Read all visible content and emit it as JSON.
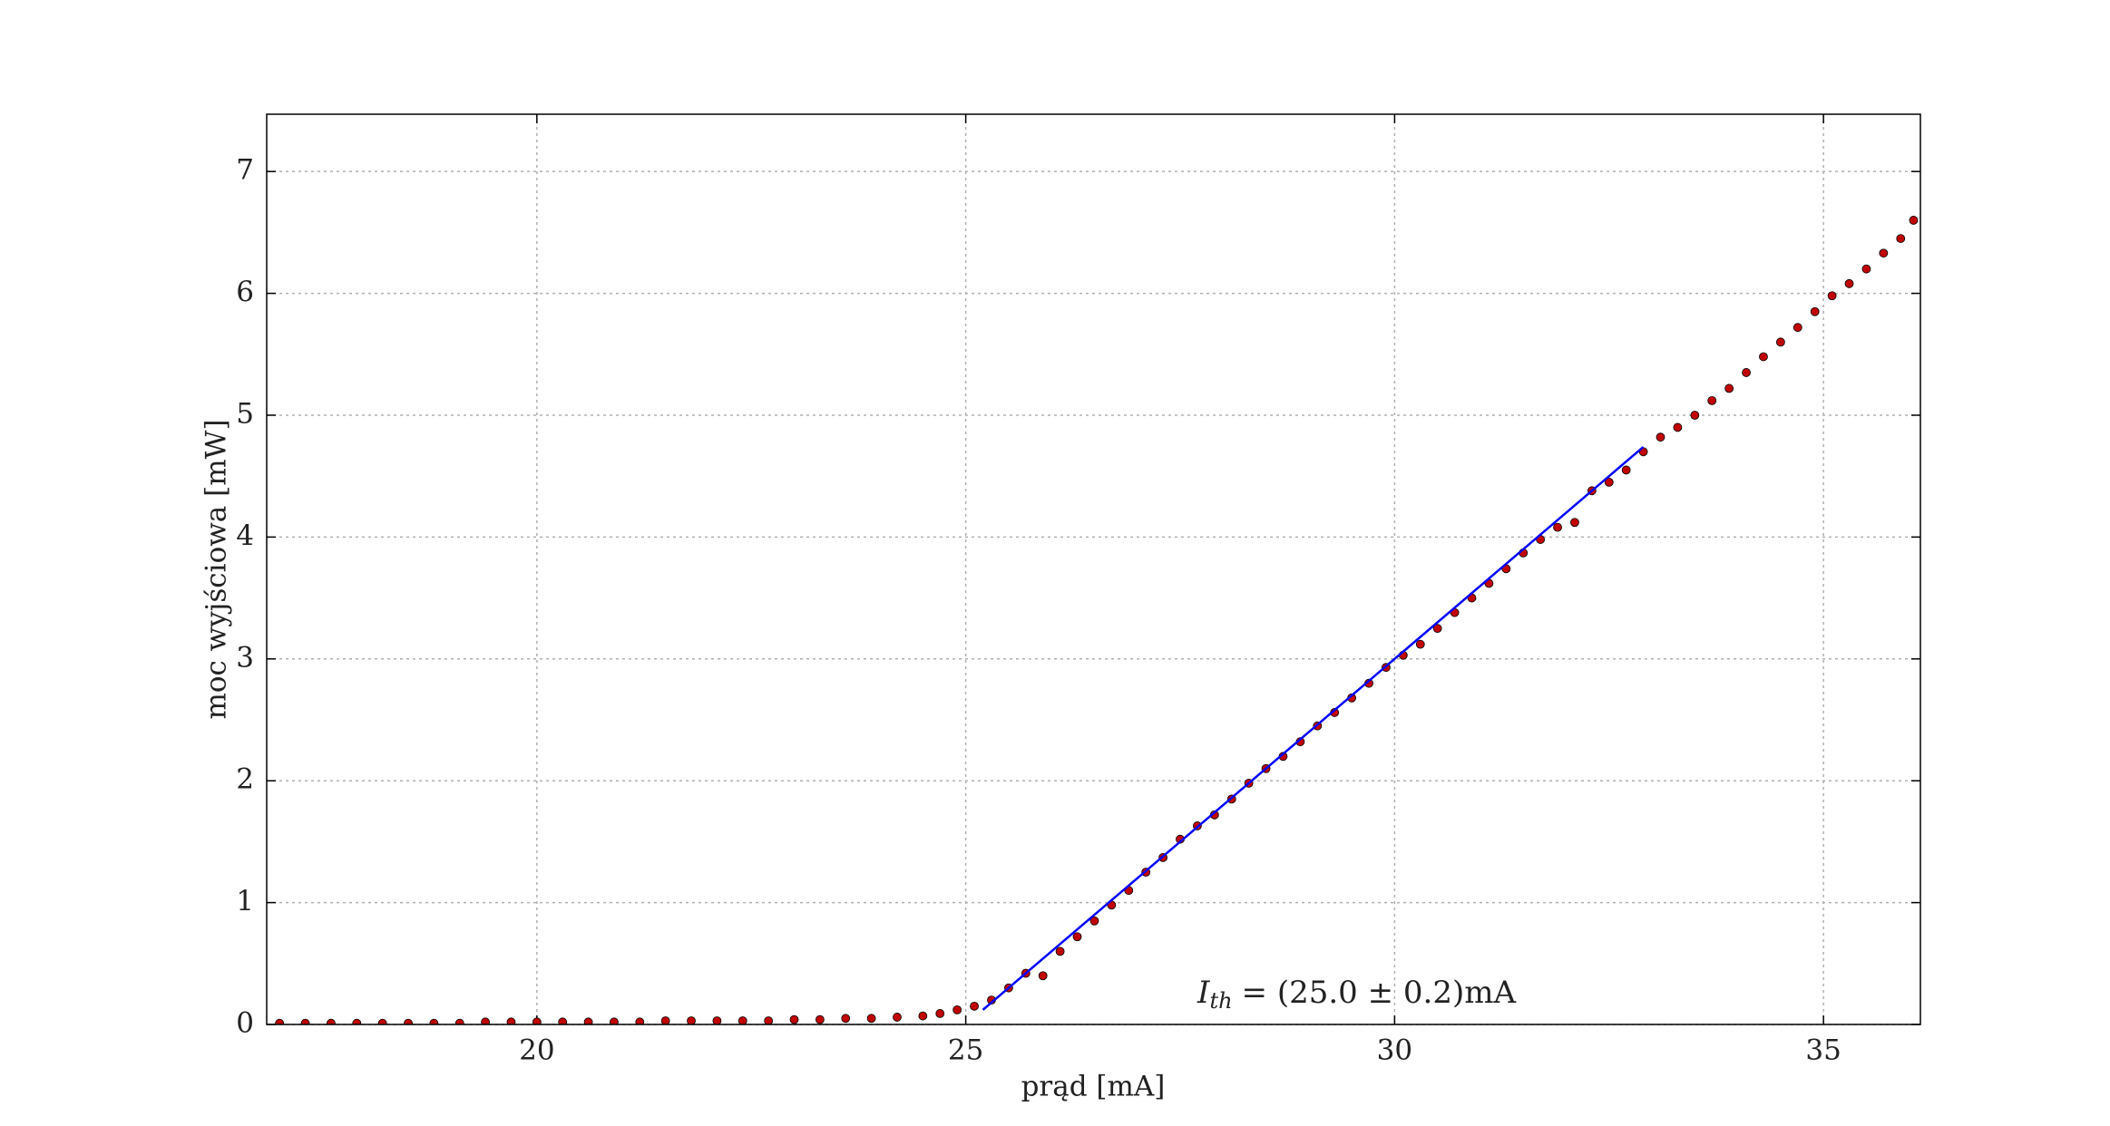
{
  "chart_data": {
    "type": "scatter",
    "xlabel": "prąd [mA]",
    "ylabel": "moc wyjściowa [mW]",
    "annotation": {
      "symbol": "I",
      "subscript": "th",
      "text": "= (25.0 ± 0.2)mA"
    },
    "xlim": [
      16.85,
      36.13
    ],
    "ylim": [
      0,
      7.47
    ],
    "xticks": [
      20,
      25,
      30,
      35
    ],
    "yticks": [
      0,
      1,
      2,
      3,
      4,
      5,
      6,
      7
    ],
    "grid": true,
    "series": [
      {
        "type": "scatter",
        "color": "#c00000",
        "x": [
          17.0,
          17.3,
          17.6,
          17.9,
          18.2,
          18.5,
          18.8,
          19.1,
          19.4,
          19.7,
          20.0,
          20.3,
          20.6,
          20.9,
          21.2,
          21.5,
          21.8,
          22.1,
          22.4,
          22.7,
          23.0,
          23.3,
          23.6,
          23.9,
          24.2,
          24.5,
          24.7,
          24.9,
          25.1,
          25.3,
          25.5,
          25.7,
          25.9,
          26.1,
          26.3,
          26.5,
          26.7,
          26.9,
          27.1,
          27.3,
          27.5,
          27.7,
          27.9,
          28.1,
          28.3,
          28.5,
          28.7,
          28.9,
          29.1,
          29.3,
          29.5,
          29.7,
          29.9,
          30.1,
          30.3,
          30.5,
          30.7,
          30.9,
          31.1,
          31.3,
          31.5,
          31.7,
          31.9,
          32.1,
          32.3,
          32.5,
          32.7,
          32.9,
          33.1,
          33.3,
          33.5,
          33.7,
          33.9,
          34.1,
          34.3,
          34.5,
          34.7,
          34.9,
          35.1,
          35.3,
          35.5,
          35.7,
          35.9,
          36.05
        ],
        "values": [
          0.01,
          0.01,
          0.01,
          0.01,
          0.01,
          0.01,
          0.01,
          0.01,
          0.02,
          0.02,
          0.02,
          0.02,
          0.02,
          0.02,
          0.02,
          0.03,
          0.03,
          0.03,
          0.03,
          0.03,
          0.04,
          0.04,
          0.05,
          0.05,
          0.06,
          0.07,
          0.09,
          0.12,
          0.15,
          0.2,
          0.3,
          0.42,
          0.4,
          0.6,
          0.72,
          0.85,
          0.98,
          1.1,
          1.25,
          1.37,
          1.52,
          1.63,
          1.72,
          1.85,
          1.98,
          2.1,
          2.2,
          2.32,
          2.45,
          2.56,
          2.68,
          2.8,
          2.93,
          3.03,
          3.12,
          3.25,
          3.38,
          3.5,
          3.62,
          3.74,
          3.87,
          3.98,
          4.08,
          4.12,
          4.38,
          4.45,
          4.55,
          4.7,
          4.82,
          4.9,
          5.0,
          5.12,
          5.22,
          5.35,
          5.48,
          5.6,
          5.72,
          5.85,
          5.98,
          6.08,
          6.2,
          6.33,
          6.45,
          6.6
        ]
      },
      {
        "type": "line",
        "color": "#0000ff",
        "x": [
          25.2,
          32.9
        ],
        "values": [
          0.12,
          4.74
        ]
      }
    ]
  }
}
